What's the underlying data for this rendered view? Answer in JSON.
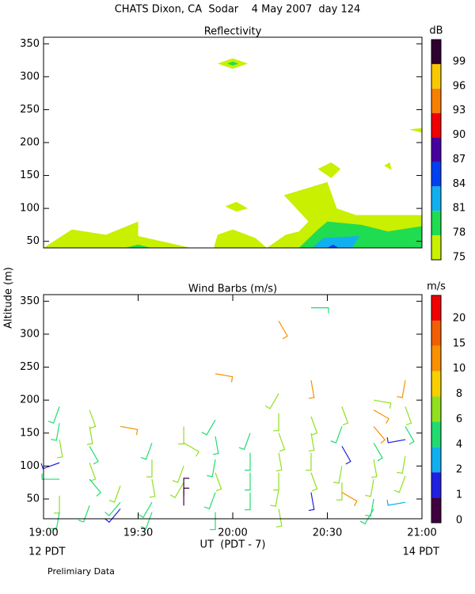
{
  "title": "CHATS Dixon, CA  Sodar    4 May 2007  day 124",
  "ylabel": "Altitude (m)",
  "xlabel": "UT  (PDT - 7)",
  "x_left_note": "12 PDT",
  "x_right_note": "14 PDT",
  "footnote": "Prelimiary Data",
  "chart_data": [
    {
      "type": "contour",
      "title": "Reflectivity",
      "xlim": [
        19,
        21
      ],
      "ylim": [
        40,
        360
      ],
      "yticks": [
        50,
        100,
        150,
        200,
        250,
        300,
        350
      ],
      "colorbar": {
        "label": "dB",
        "levels": [
          75,
          78,
          81,
          84,
          87,
          90,
          93,
          96,
          99
        ],
        "colors": [
          "#c8f000",
          "#20dc50",
          "#10b0f0",
          "#0040f0",
          "#4800a0",
          "#f00000",
          "#f88000",
          "#f8c800",
          "#300030"
        ]
      },
      "areas": [
        {
          "level": 75,
          "x": [
            19,
            19.15,
            19.33,
            19.5,
            19.5,
            19.78
          ],
          "y": [
            40,
            68,
            60,
            80,
            58,
            40
          ]
        },
        {
          "level": 75,
          "x": [
            19.9,
            19.92,
            20,
            20.12,
            20.18
          ],
          "y": [
            40,
            60,
            68,
            55,
            40
          ]
        },
        {
          "level": 75,
          "x": [
            20.18,
            20.28,
            20.35,
            20.4,
            20.32,
            20.27,
            20.5,
            20.55,
            20.65,
            21,
            21
          ],
          "y": [
            40,
            60,
            65,
            80,
            105,
            120,
            140,
            100,
            90,
            90,
            40
          ]
        },
        {
          "level": 75,
          "x": [
            19.92,
            20,
            20.08,
            20
          ],
          "y": [
            320,
            328,
            320,
            312
          ]
        },
        {
          "level": 78,
          "x": [
            19.97,
            20,
            20.03,
            20
          ],
          "y": [
            320,
            323,
            320,
            317
          ]
        },
        {
          "level": 75,
          "x": [
            19.96,
            20.02,
            20.08,
            20.02
          ],
          "y": [
            103,
            110,
            100,
            95
          ]
        },
        {
          "level": 75,
          "x": [
            20.45,
            20.52,
            20.57,
            20.52
          ],
          "y": [
            160,
            170,
            160,
            146
          ]
        },
        {
          "level": 75,
          "x": [
            20.8,
            20.83,
            20.84
          ],
          "y": [
            165,
            170,
            158
          ]
        },
        {
          "level": 75,
          "x": [
            20.93,
            21,
            21
          ],
          "y": [
            220,
            222,
            215
          ]
        },
        {
          "level": 78,
          "x": [
            20.35,
            20.45,
            20.5,
            20.68,
            20.82,
            21,
            21
          ],
          "y": [
            40,
            68,
            80,
            75,
            65,
            73,
            40
          ]
        },
        {
          "level": 78,
          "x": [
            19.43,
            19.5,
            19.57
          ],
          "y": [
            40,
            45,
            40
          ]
        },
        {
          "level": 81,
          "x": [
            20.42,
            20.48,
            20.67,
            20.63
          ],
          "y": [
            40,
            55,
            58,
            40
          ]
        },
        {
          "level": 84,
          "x": [
            20.5,
            20.53,
            20.56
          ],
          "y": [
            40,
            45,
            40
          ]
        }
      ]
    },
    {
      "type": "barbs",
      "title": "Wind Barbs (m/s)",
      "xlim": [
        19,
        21
      ],
      "ylim": [
        20,
        360
      ],
      "yticks": [
        50,
        100,
        150,
        200,
        250,
        300,
        350
      ],
      "xticks": [
        {
          "value": 19,
          "label": "19:00"
        },
        {
          "value": 19.5,
          "label": "19:30"
        },
        {
          "value": 20,
          "label": "20:00"
        },
        {
          "value": 20.5,
          "label": "20:30"
        },
        {
          "value": 21,
          "label": "21:00"
        }
      ],
      "colorbar": {
        "label": "m/s",
        "levels": [
          0,
          1,
          2,
          4,
          6,
          8,
          10,
          15,
          20
        ],
        "colors": [
          "#400040",
          "#2020e0",
          "#10b0f0",
          "#20dc70",
          "#90e020",
          "#f8d000",
          "#f89000",
          "#f06000",
          "#f00000"
        ]
      },
      "x": [
        19.084,
        19.084,
        19.084,
        19.084,
        19.084,
        19.084,
        19.084,
        19.243,
        19.243,
        19.243,
        19.243,
        19.243,
        19.243,
        19.406,
        19.406,
        19.406,
        19.406,
        19.573,
        19.573,
        19.573,
        19.573,
        19.573,
        19.741,
        19.741,
        19.741,
        19.741,
        19.741,
        19.741,
        19.908,
        19.908,
        19.908,
        19.908,
        19.908,
        19.908,
        19.908,
        20.092,
        20.092,
        20.092,
        20.092,
        20.243,
        20.243,
        20.243,
        20.243,
        20.243,
        20.243,
        20.243,
        20.243,
        20.414,
        20.414,
        20.414,
        20.414,
        20.414,
        20.414,
        20.414,
        20.577,
        20.577,
        20.577,
        20.577,
        20.577,
        20.577,
        20.745,
        20.745,
        20.745,
        20.745,
        20.745,
        20.745,
        20.745,
        20.745,
        20.912,
        20.912,
        20.912,
        20.912,
        20.912,
        20.912,
        20.912
      ],
      "y": [
        190,
        165,
        140,
        105,
        80,
        55,
        30,
        185,
        160,
        130,
        105,
        80,
        40,
        160,
        70,
        45,
        35,
        135,
        110,
        80,
        45,
        30,
        160,
        135,
        100,
        75,
        55,
        40,
        170,
        145,
        110,
        90,
        60,
        30,
        240,
        150,
        120,
        90,
        60,
        210,
        180,
        150,
        120,
        90,
        65,
        35,
        320,
        340,
        230,
        175,
        150,
        120,
        90,
        60,
        190,
        160,
        130,
        100,
        75,
        60,
        200,
        185,
        160,
        135,
        110,
        80,
        50,
        35,
        230,
        190,
        160,
        140,
        115,
        85,
        45
      ],
      "speed": [
        5,
        5,
        6,
        1.5,
        4,
        6,
        5,
        6,
        6,
        5,
        6,
        5,
        5,
        12,
        6,
        5,
        1.5,
        5,
        6,
        6,
        5,
        5,
        6,
        7,
        6,
        7,
        0.8,
        0.8,
        5,
        5,
        5,
        6,
        5,
        5,
        12,
        5,
        4,
        4,
        4,
        7,
        6,
        7,
        6,
        6,
        7,
        6,
        12,
        5,
        12,
        6,
        6,
        6,
        6,
        1.5,
        6,
        5,
        1.5,
        7,
        6,
        12,
        6,
        12,
        12,
        5,
        6,
        6,
        4,
        5,
        12,
        6,
        5,
        1.5,
        7,
        6,
        3
      ],
      "direction": [
        200,
        190,
        170,
        250,
        270,
        180,
        190,
        160,
        170,
        150,
        160,
        140,
        200,
        100,
        200,
        220,
        220,
        200,
        180,
        170,
        210,
        200,
        180,
        120,
        200,
        210,
        0,
        0,
        210,
        170,
        190,
        160,
        200,
        180,
        100,
        200,
        180,
        180,
        180,
        210,
        180,
        160,
        170,
        180,
        190,
        170,
        150,
        90,
        170,
        160,
        170,
        180,
        160,
        170,
        160,
        200,
        150,
        190,
        180,
        120,
        100,
        120,
        140,
        150,
        170,
        190,
        190,
        210,
        190,
        160,
        150,
        260,
        190,
        200,
        260
      ]
    }
  ]
}
